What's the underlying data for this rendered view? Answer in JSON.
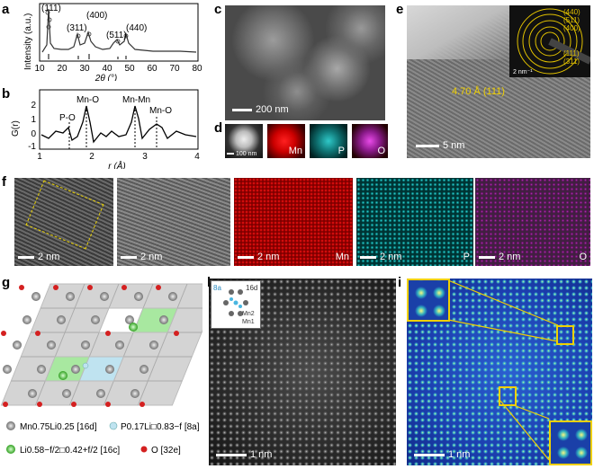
{
  "panels": {
    "a": {
      "label": "a",
      "ylabel": "Intensity (a.u.)",
      "xlabel": "2θ (°)",
      "peaks": [
        "(111)",
        "(311)",
        "(400)",
        "(511)",
        "(440)"
      ],
      "xticks": [
        "10",
        "20",
        "30",
        "40",
        "50",
        "60",
        "70",
        "80"
      ]
    },
    "b": {
      "label": "b",
      "ylabel": "G(r)",
      "xlabel": "r (Å)",
      "peaks": [
        "P-O",
        "Mn-O",
        "Mn-Mn",
        "Mn-O"
      ],
      "yticks": [
        "2",
        "1",
        "0",
        "-1"
      ],
      "xticks": [
        "1",
        "2",
        "3",
        "4"
      ]
    },
    "c": {
      "label": "c",
      "scale": "200 nm"
    },
    "d": {
      "label": "d",
      "scale": "100 nm",
      "elements": [
        "Mn",
        "P",
        "O"
      ]
    },
    "e": {
      "label": "e",
      "scale": "5 nm",
      "lattice": "4.70 Å (111)",
      "saed_scale": "2 nm⁻¹",
      "rings": [
        "(440)",
        "(511)",
        "(400)",
        "(111)",
        "(311)"
      ]
    },
    "f": {
      "label": "f",
      "scales": [
        "2 nm",
        "2 nm",
        "2 nm",
        "2 nm",
        "2 nm"
      ],
      "elements": [
        "Mn",
        "P",
        "O"
      ]
    },
    "g": {
      "label": "g",
      "legend": [
        {
          "text": "Mn0.75Li0.25 [16d]",
          "color": "#9a9a9a"
        },
        {
          "text": "P0.17Li□0.83−f [8a]",
          "color": "#bfe3f0"
        },
        {
          "text": "Li0.58−f/2□0.42+f/2 [16c]",
          "color": "#7bd86a"
        },
        {
          "text": "O [32e]",
          "color": "#d42020"
        }
      ]
    },
    "h": {
      "label": "h",
      "scale": "1 nm",
      "inset": [
        "8a",
        "16d",
        "Mn2",
        "Mn1"
      ]
    },
    "i": {
      "label": "i",
      "scale": "1 nm"
    }
  }
}
